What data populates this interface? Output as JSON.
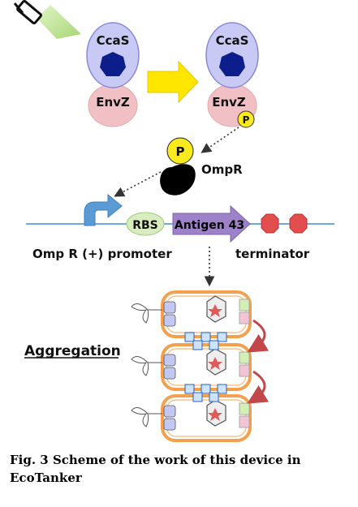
{
  "figure": {
    "left_complex": {
      "sensor_label": "CcaS",
      "kinase_label": "EnvZ"
    },
    "right_complex": {
      "sensor_label": "CcaS",
      "kinase_label": "EnvZ",
      "phospho_label": "P"
    },
    "regulator": {
      "phospho_label": "P",
      "label": "OmpR"
    },
    "construct": {
      "rbs_label": "RBS",
      "gene_label": "Antigen 43",
      "promoter_label": "Omp R (+) promoter",
      "terminator_label": "terminator"
    },
    "aggregation_label": "Aggregation",
    "colors": {
      "light": "#b8e08c",
      "sensor": "#c5c6f2",
      "heptagon": "#0c1e8c",
      "envz": "#eeb9bd",
      "phospho": "#f8ea1c",
      "arrow_yellow": "#ffe600",
      "dna_line": "#6fa8dc",
      "promoter": "#5b9bd5",
      "rbs": "#d8ecc0",
      "gene": "#9d82c9",
      "terminator": "#e24e4e",
      "cell_outline": "#f4a14f",
      "red_arrow": "#c2474a"
    }
  },
  "caption": "Fig. 3 Scheme of the work of this device in EcoTanker"
}
